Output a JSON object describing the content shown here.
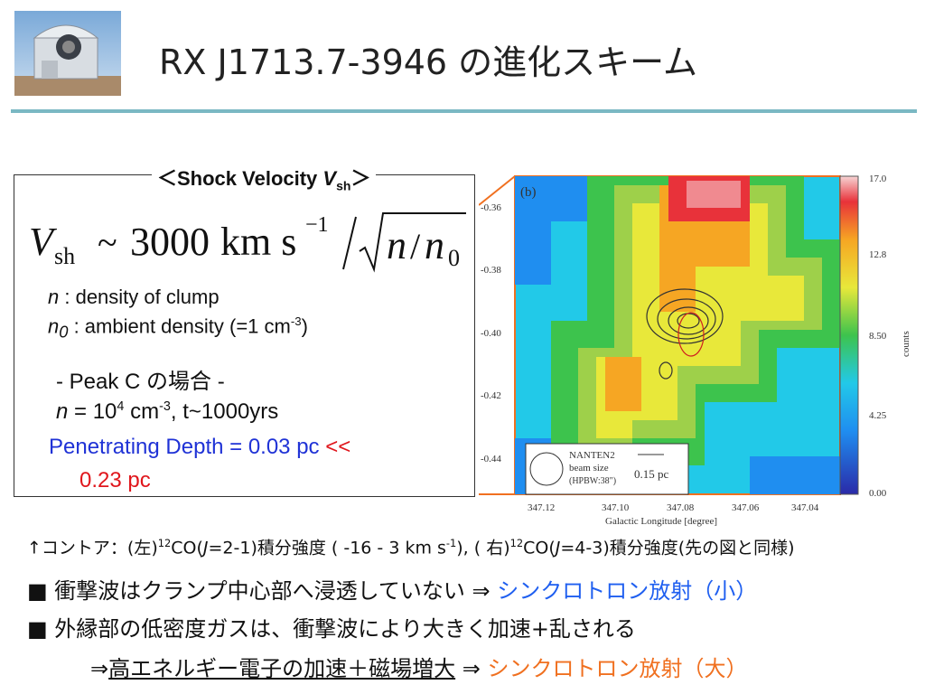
{
  "title": "RX J1713.7-3946 の進化スキーム",
  "box": {
    "heading_prefix": "＜Shock Velocity ",
    "heading_var": "V",
    "heading_sub": "sh",
    "heading_suffix": "＞",
    "formula": {
      "lhs_var": "V",
      "lhs_sub": "sh",
      "approx": "~",
      "number": "3000",
      "unit": "km s",
      "unit_exp": "−1",
      "num": "n",
      "slash": "/",
      "den": "n",
      "den_sub": "0"
    },
    "def1_var": "n",
    "def1_text": " : density of clump",
    "def2_var": "n",
    "def2_sub": "0",
    "def2_text": " : ambient density (=1 cm",
    "def2_exp": "-3",
    "def2_end": ")",
    "peak_label": "- Peak C の場合 -",
    "peak_n_var": "n",
    "peak_n_eq": " = 10",
    "peak_n_exp": "4",
    "peak_n_unit": " cm",
    "peak_n_unit_exp": "-3",
    "peak_n_rest": ",  t~1000yrs",
    "penetrating": "Penetrating Depth = 0.03 pc ",
    "lt": "<<",
    "depth2": "0.23 pc"
  },
  "map": {
    "panel_label": "(b)",
    "y_ticks": [
      "-0.36",
      "-0.38",
      "-0.40",
      "-0.42",
      "-0.44"
    ],
    "x_ticks": [
      "347.12",
      "347.10",
      "347.08",
      "347.06",
      "347.04"
    ],
    "x_label": "Galactic Longitude [degree]",
    "colorbar_ticks": [
      "17.0",
      "12.8",
      "8.50",
      "4.25",
      "0.00"
    ],
    "colorbar_label": "counts",
    "legend_name": "NANTEN2",
    "legend_beam": "beam size",
    "legend_hpbw": "(HPBW:38\")",
    "scale_label": "0.15 pc"
  },
  "caption": {
    "part1": "↑コントア：(左)",
    "sup1": "12",
    "part2": "CO(",
    "j1": "J",
    "part3": "=2-1)積分強度 ( -16 - 3 km s",
    "sup2": "-1",
    "part4": "), ( 右)",
    "sup3": "12",
    "part5": "CO(",
    "j2": "J",
    "part6": "=4-3)積分強度(先の図と同様)"
  },
  "bullets": {
    "b1_text": "■  衝撃波はクランプ中心部へ浸透していない ⇒ ",
    "b1_result": "シンクロトロン放射（小）",
    "b2_text": "■  外縁部の低密度ガスは、衝撃波により大きく加速+乱される",
    "b3_arrow": "⇒",
    "b3_underlined": "高エネルギー電子の加速＋磁場増大",
    "b3_mid": " ⇒ ",
    "b3_result": "シンクロトロン放射（大）"
  },
  "colors": {
    "title_rule": "#7ab8c3",
    "blue_text": "#1f32d6",
    "red_text": "#e0161c",
    "orange_text": "#f07020",
    "zoom_lines": "#f07020"
  }
}
